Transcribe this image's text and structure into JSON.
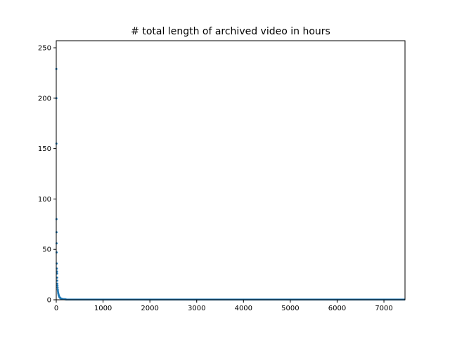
{
  "chart_data": {
    "type": "scatter",
    "title": "# total length of archived video in hours",
    "xlabel": "",
    "ylabel": "",
    "xlim": [
      0,
      7450
    ],
    "ylim": [
      0,
      257
    ],
    "xticks": [
      0,
      1000,
      2000,
      3000,
      4000,
      5000,
      6000,
      7000
    ],
    "yticks": [
      0,
      50,
      100,
      150,
      200,
      250
    ],
    "grid": false,
    "marker_color": "#1f77b4",
    "highlight_points": [
      {
        "x": 2,
        "y": 229
      },
      {
        "x": 3,
        "y": 200
      },
      {
        "x": 4,
        "y": 155
      },
      {
        "x": 5,
        "y": 80
      },
      {
        "x": 6,
        "y": 67
      },
      {
        "x": 7,
        "y": 56
      },
      {
        "x": 8,
        "y": 47
      },
      {
        "x": 10,
        "y": 36
      },
      {
        "x": 12,
        "y": 31
      },
      {
        "x": 14,
        "y": 28
      },
      {
        "x": 16,
        "y": 26
      },
      {
        "x": 18,
        "y": 22
      },
      {
        "x": 20,
        "y": 19
      },
      {
        "x": 22,
        "y": 16
      },
      {
        "x": 25,
        "y": 14
      },
      {
        "x": 28,
        "y": 12
      },
      {
        "x": 32,
        "y": 10
      },
      {
        "x": 36,
        "y": 8.5
      },
      {
        "x": 40,
        "y": 7
      },
      {
        "x": 45,
        "y": 6
      },
      {
        "x": 50,
        "y": 5
      },
      {
        "x": 56,
        "y": 4
      },
      {
        "x": 63,
        "y": 3.2
      },
      {
        "x": 70,
        "y": 2.6
      },
      {
        "x": 80,
        "y": 2
      },
      {
        "x": 90,
        "y": 1.6
      },
      {
        "x": 100,
        "y": 1.3
      },
      {
        "x": 120,
        "y": 1
      },
      {
        "x": 140,
        "y": 0.8
      },
      {
        "x": 170,
        "y": 0.6
      },
      {
        "x": 200,
        "y": 0.5
      }
    ],
    "tail": {
      "x_start": 200,
      "x_end": 7450,
      "y": 0.3
    }
  }
}
